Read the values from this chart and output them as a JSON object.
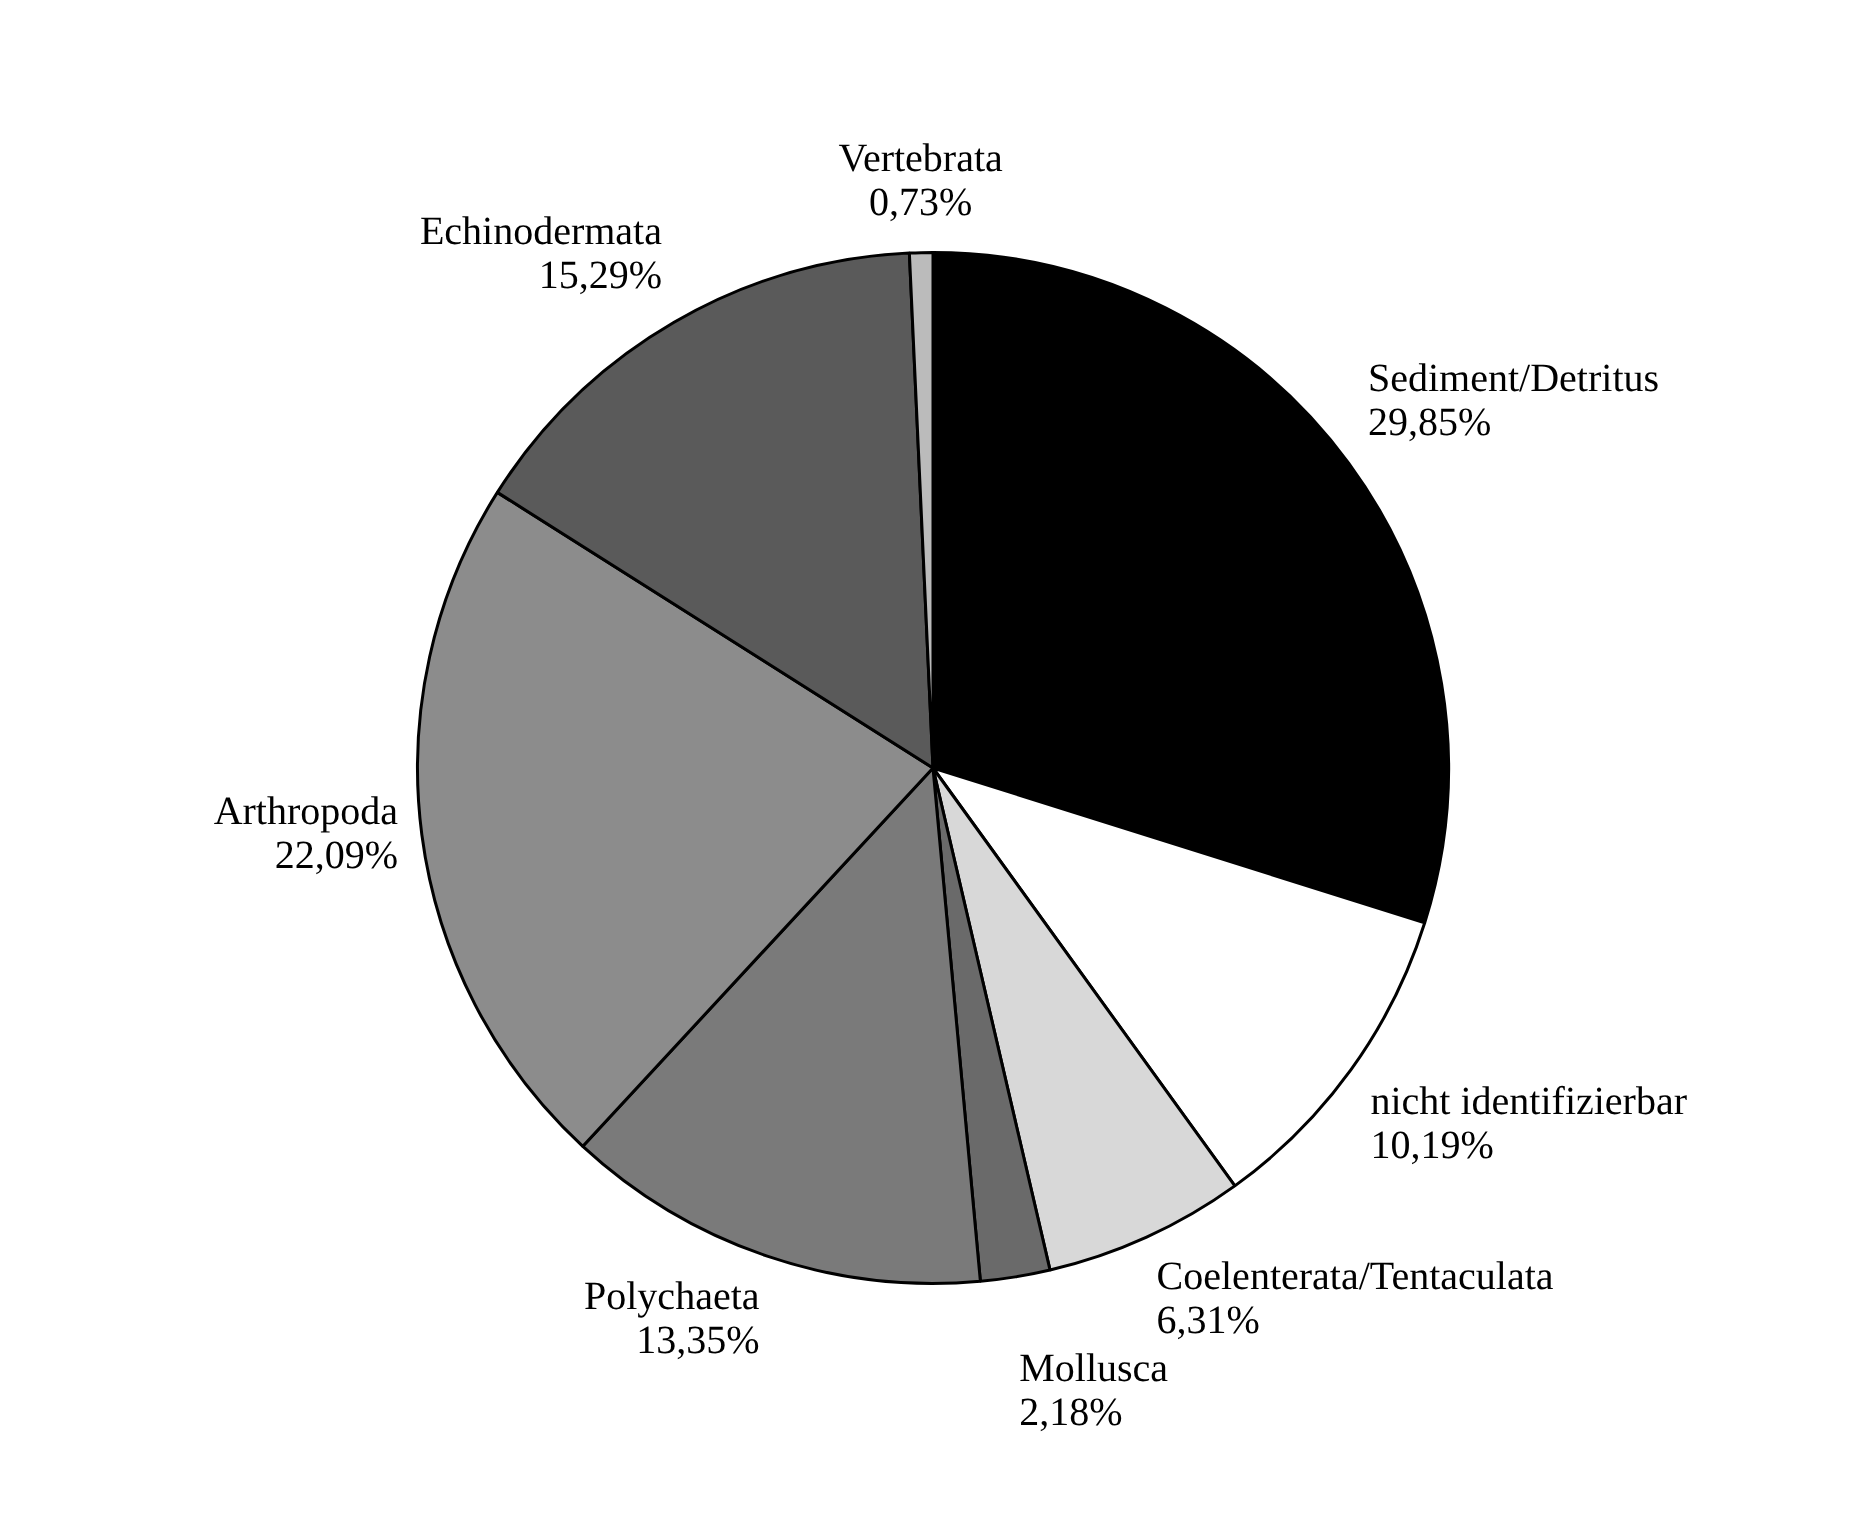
{
  "chart_data": {
    "type": "pie",
    "categories": [
      "Sediment/Detritus",
      "nicht identifizierbar",
      "Coelenterata/Tentaculata",
      "Mollusca",
      "Polychaeta",
      "Arthropoda",
      "Echinodermata",
      "Vertebrata"
    ],
    "values": [
      29.85,
      10.19,
      6.31,
      2.18,
      13.35,
      22.09,
      15.29,
      0.73
    ],
    "value_labels": [
      "29,85%",
      "10,19%",
      "6,31%",
      "2,18%",
      "13,35%",
      "22,09%",
      "15,29%",
      "0,73%"
    ],
    "colors": [
      "#000000",
      "#ffffff",
      "#d8d8d8",
      "#6a6a6a",
      "#7a7a7a",
      "#8c8c8c",
      "#5a5a5a",
      "#bbbbbb"
    ],
    "legend": false
  }
}
